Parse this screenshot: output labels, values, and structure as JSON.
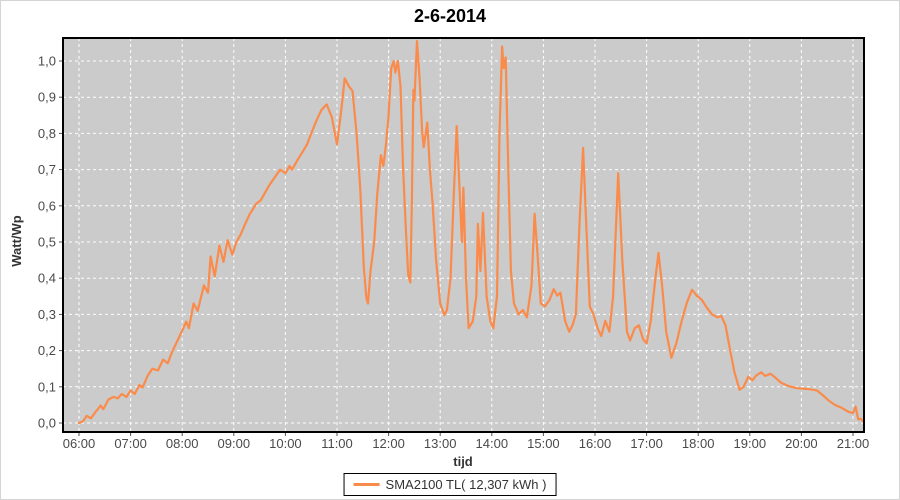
{
  "chart_data": {
    "type": "line",
    "title": "2-6-2014",
    "xlabel": "tijd",
    "ylabel": "Watt/Wp",
    "x_range_hours": [
      5.69,
      21.21
    ],
    "ylim": [
      -0.025,
      1.065
    ],
    "grid": "white dashed on gray plot background",
    "x_ticks": {
      "hours": [
        6,
        7,
        8,
        9,
        10,
        11,
        12,
        13,
        14,
        15,
        16,
        17,
        18,
        19,
        20,
        21
      ],
      "labels": [
        "06:00",
        "07:00",
        "08:00",
        "09:00",
        "10:00",
        "11:00",
        "12:00",
        "13:00",
        "14:00",
        "15:00",
        "16:00",
        "17:00",
        "18:00",
        "19:00",
        "20:00",
        "21:00"
      ]
    },
    "y_ticks": {
      "values": [
        0,
        0.1,
        0.2,
        0.3,
        0.4,
        0.5,
        0.6,
        0.7,
        0.8,
        0.9,
        1.0
      ],
      "labels": [
        "0,0",
        "0,1",
        "0,2",
        "0,3",
        "0,4",
        "0,5",
        "0,6",
        "0,7",
        "0,8",
        "0,9",
        "1,0"
      ]
    },
    "legend": {
      "position": "bottom-center",
      "label": "SMA2100 TL( 12,307 kWh )"
    },
    "colors": {
      "line": "#fa8b4a",
      "plot_bg": "#cbcbcb",
      "grid": "#ffffff",
      "border": "#000000",
      "tick_label": "#4a4a4a"
    },
    "series": [
      {
        "name": "SMA2100 TL( 12,307 kWh )",
        "color": "#fa8b4a",
        "points": [
          [
            6.0,
            0.0
          ],
          [
            6.08,
            0.005
          ],
          [
            6.15,
            0.02
          ],
          [
            6.23,
            0.013
          ],
          [
            6.33,
            0.032
          ],
          [
            6.42,
            0.048
          ],
          [
            6.47,
            0.038
          ],
          [
            6.57,
            0.065
          ],
          [
            6.67,
            0.072
          ],
          [
            6.75,
            0.068
          ],
          [
            6.83,
            0.08
          ],
          [
            6.92,
            0.072
          ],
          [
            7.0,
            0.09
          ],
          [
            7.08,
            0.08
          ],
          [
            7.17,
            0.105
          ],
          [
            7.23,
            0.098
          ],
          [
            7.33,
            0.13
          ],
          [
            7.42,
            0.15
          ],
          [
            7.53,
            0.145
          ],
          [
            7.63,
            0.175
          ],
          [
            7.72,
            0.165
          ],
          [
            7.8,
            0.195
          ],
          [
            7.9,
            0.225
          ],
          [
            8.0,
            0.255
          ],
          [
            8.08,
            0.28
          ],
          [
            8.13,
            0.262
          ],
          [
            8.22,
            0.33
          ],
          [
            8.3,
            0.31
          ],
          [
            8.42,
            0.38
          ],
          [
            8.5,
            0.36
          ],
          [
            8.55,
            0.46
          ],
          [
            8.63,
            0.405
          ],
          [
            8.72,
            0.49
          ],
          [
            8.8,
            0.445
          ],
          [
            8.88,
            0.505
          ],
          [
            8.97,
            0.465
          ],
          [
            9.05,
            0.5
          ],
          [
            9.13,
            0.52
          ],
          [
            9.22,
            0.55
          ],
          [
            9.3,
            0.575
          ],
          [
            9.43,
            0.605
          ],
          [
            9.52,
            0.615
          ],
          [
            9.6,
            0.635
          ],
          [
            9.68,
            0.655
          ],
          [
            9.8,
            0.68
          ],
          [
            9.9,
            0.7
          ],
          [
            10.0,
            0.69
          ],
          [
            10.08,
            0.71
          ],
          [
            10.13,
            0.7
          ],
          [
            10.25,
            0.73
          ],
          [
            10.33,
            0.748
          ],
          [
            10.42,
            0.77
          ],
          [
            10.5,
            0.8
          ],
          [
            10.6,
            0.835
          ],
          [
            10.7,
            0.865
          ],
          [
            10.8,
            0.88
          ],
          [
            10.9,
            0.845
          ],
          [
            11.0,
            0.77
          ],
          [
            11.08,
            0.86
          ],
          [
            11.15,
            0.952
          ],
          [
            11.23,
            0.93
          ],
          [
            11.3,
            0.917
          ],
          [
            11.38,
            0.8
          ],
          [
            11.45,
            0.65
          ],
          [
            11.52,
            0.43
          ],
          [
            11.57,
            0.345
          ],
          [
            11.6,
            0.33
          ],
          [
            11.65,
            0.42
          ],
          [
            11.72,
            0.5
          ],
          [
            11.78,
            0.63
          ],
          [
            11.85,
            0.74
          ],
          [
            11.9,
            0.71
          ],
          [
            11.95,
            0.77
          ],
          [
            12.0,
            0.85
          ],
          [
            12.05,
            0.98
          ],
          [
            12.1,
            1.0
          ],
          [
            12.13,
            0.968
          ],
          [
            12.18,
            1.0
          ],
          [
            12.23,
            0.93
          ],
          [
            12.28,
            0.71
          ],
          [
            12.33,
            0.55
          ],
          [
            12.38,
            0.41
          ],
          [
            12.42,
            0.388
          ],
          [
            12.45,
            0.6
          ],
          [
            12.48,
            0.92
          ],
          [
            12.5,
            0.89
          ],
          [
            12.55,
            1.055
          ],
          [
            12.6,
            0.95
          ],
          [
            12.65,
            0.808
          ],
          [
            12.68,
            0.762
          ],
          [
            12.75,
            0.83
          ],
          [
            12.8,
            0.7
          ],
          [
            12.85,
            0.61
          ],
          [
            12.92,
            0.45
          ],
          [
            13.0,
            0.33
          ],
          [
            13.08,
            0.298
          ],
          [
            13.13,
            0.312
          ],
          [
            13.2,
            0.4
          ],
          [
            13.27,
            0.65
          ],
          [
            13.32,
            0.82
          ],
          [
            13.37,
            0.66
          ],
          [
            13.42,
            0.5
          ],
          [
            13.45,
            0.65
          ],
          [
            13.5,
            0.4
          ],
          [
            13.55,
            0.262
          ],
          [
            13.63,
            0.28
          ],
          [
            13.7,
            0.35
          ],
          [
            13.73,
            0.55
          ],
          [
            13.78,
            0.42
          ],
          [
            13.83,
            0.58
          ],
          [
            13.9,
            0.35
          ],
          [
            13.97,
            0.282
          ],
          [
            14.03,
            0.262
          ],
          [
            14.1,
            0.35
          ],
          [
            14.15,
            0.8
          ],
          [
            14.2,
            1.04
          ],
          [
            14.23,
            0.98
          ],
          [
            14.27,
            1.01
          ],
          [
            14.32,
            0.7
          ],
          [
            14.37,
            0.42
          ],
          [
            14.43,
            0.33
          ],
          [
            14.52,
            0.3
          ],
          [
            14.6,
            0.312
          ],
          [
            14.68,
            0.292
          ],
          [
            14.77,
            0.38
          ],
          [
            14.83,
            0.578
          ],
          [
            14.88,
            0.48
          ],
          [
            14.95,
            0.33
          ],
          [
            15.03,
            0.322
          ],
          [
            15.12,
            0.34
          ],
          [
            15.2,
            0.37
          ],
          [
            15.27,
            0.352
          ],
          [
            15.33,
            0.36
          ],
          [
            15.42,
            0.282
          ],
          [
            15.5,
            0.252
          ],
          [
            15.57,
            0.272
          ],
          [
            15.63,
            0.302
          ],
          [
            15.7,
            0.55
          ],
          [
            15.77,
            0.76
          ],
          [
            15.83,
            0.55
          ],
          [
            15.9,
            0.322
          ],
          [
            15.97,
            0.3
          ],
          [
            16.05,
            0.262
          ],
          [
            16.12,
            0.24
          ],
          [
            16.2,
            0.282
          ],
          [
            16.28,
            0.252
          ],
          [
            16.35,
            0.35
          ],
          [
            16.45,
            0.69
          ],
          [
            16.53,
            0.45
          ],
          [
            16.62,
            0.252
          ],
          [
            16.68,
            0.228
          ],
          [
            16.77,
            0.262
          ],
          [
            16.85,
            0.27
          ],
          [
            16.93,
            0.232
          ],
          [
            17.0,
            0.22
          ],
          [
            17.08,
            0.28
          ],
          [
            17.17,
            0.4
          ],
          [
            17.23,
            0.47
          ],
          [
            17.3,
            0.38
          ],
          [
            17.38,
            0.252
          ],
          [
            17.48,
            0.18
          ],
          [
            17.58,
            0.222
          ],
          [
            17.68,
            0.282
          ],
          [
            17.78,
            0.332
          ],
          [
            17.88,
            0.368
          ],
          [
            17.97,
            0.352
          ],
          [
            18.07,
            0.34
          ],
          [
            18.17,
            0.318
          ],
          [
            18.27,
            0.3
          ],
          [
            18.37,
            0.292
          ],
          [
            18.45,
            0.295
          ],
          [
            18.53,
            0.27
          ],
          [
            18.62,
            0.2
          ],
          [
            18.7,
            0.142
          ],
          [
            18.8,
            0.092
          ],
          [
            18.88,
            0.1
          ],
          [
            18.97,
            0.128
          ],
          [
            19.05,
            0.118
          ],
          [
            19.13,
            0.132
          ],
          [
            19.22,
            0.14
          ],
          [
            19.3,
            0.13
          ],
          [
            19.4,
            0.136
          ],
          [
            19.5,
            0.125
          ],
          [
            19.6,
            0.112
          ],
          [
            19.7,
            0.105
          ],
          [
            19.8,
            0.1
          ],
          [
            19.92,
            0.096
          ],
          [
            20.03,
            0.095
          ],
          [
            20.17,
            0.093
          ],
          [
            20.3,
            0.09
          ],
          [
            20.42,
            0.076
          ],
          [
            20.53,
            0.062
          ],
          [
            20.65,
            0.05
          ],
          [
            20.78,
            0.042
          ],
          [
            20.92,
            0.03
          ],
          [
            21.0,
            0.028
          ],
          [
            21.05,
            0.045
          ],
          [
            21.1,
            0.01
          ],
          [
            21.15,
            0.012
          ],
          [
            21.21,
            0.002
          ]
        ]
      }
    ]
  }
}
